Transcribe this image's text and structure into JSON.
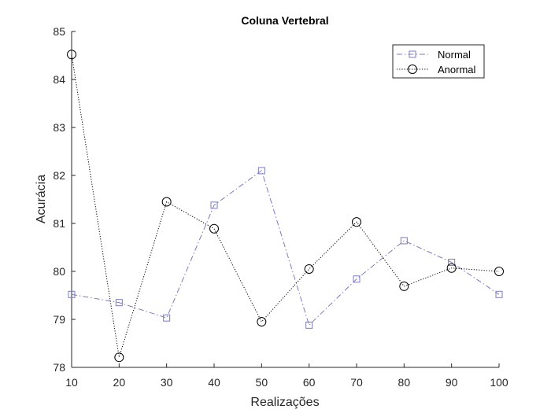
{
  "chart_data": {
    "type": "line",
    "title": "Coluna Vertebral",
    "xlabel": "Realizações",
    "ylabel": "Acurácia",
    "x": [
      10,
      20,
      30,
      40,
      50,
      60,
      70,
      80,
      90,
      100
    ],
    "xlim": [
      10,
      100
    ],
    "ylim": [
      78,
      85
    ],
    "xticks": [
      "10",
      "20",
      "30",
      "40",
      "50",
      "60",
      "70",
      "80",
      "90",
      "100"
    ],
    "yticks": [
      "78",
      "79",
      "80",
      "81",
      "82",
      "83",
      "84",
      "85"
    ],
    "grid": false,
    "legend_position": "top-right",
    "series": [
      {
        "name": "Normal",
        "values": [
          79.52,
          79.35,
          79.03,
          81.38,
          82.1,
          78.88,
          79.84,
          80.64,
          80.19,
          79.52
        ],
        "color": "#7b7bbf",
        "line_style": "dash-dot",
        "marker": "square"
      },
      {
        "name": "Anormal",
        "values": [
          84.52,
          78.21,
          81.45,
          80.89,
          78.95,
          80.05,
          81.03,
          79.69,
          80.07,
          80.0
        ],
        "color": "#000000",
        "line_style": "dotted",
        "marker": "circle"
      }
    ]
  }
}
